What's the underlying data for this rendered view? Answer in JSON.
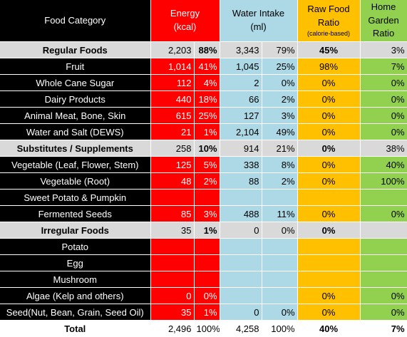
{
  "header": {
    "category": "Food Category",
    "energy_line1": "Energy",
    "energy_line2": "(kcal)",
    "water_line1": "Water Intake",
    "water_line2": "(ml)",
    "raw_line1": "Raw Food",
    "raw_line2": "Ratio",
    "raw_line3": "(calorie-based)",
    "home_line1": "Home",
    "home_line2": "Garden",
    "home_line3": "Ratio"
  },
  "rows": [
    {
      "type": "group",
      "name": "Regular Foods",
      "energy": "2,203",
      "energy_pct": "88%",
      "water": "3,343",
      "water_pct": "79%",
      "raw": "45%",
      "home": "3%"
    },
    {
      "type": "item",
      "name": "Fruit",
      "energy": "1,014",
      "energy_pct": "41%",
      "water": "1,045",
      "water_pct": "25%",
      "raw": "98%",
      "home": "7%"
    },
    {
      "type": "item",
      "name": "Whole Cane Sugar",
      "energy": "112",
      "energy_pct": "4%",
      "water": "2",
      "water_pct": "0%",
      "raw": "0%",
      "home": "0%"
    },
    {
      "type": "item",
      "name": "Dairy Products",
      "energy": "440",
      "energy_pct": "18%",
      "water": "66",
      "water_pct": "2%",
      "raw": "0%",
      "home": "0%"
    },
    {
      "type": "item",
      "name": "Animal Meat, Bone, Skin",
      "energy": "615",
      "energy_pct": "25%",
      "water": "127",
      "water_pct": "3%",
      "raw": "0%",
      "home": "0%"
    },
    {
      "type": "item",
      "name": "Water and Salt (DEWS)",
      "energy": "21",
      "energy_pct": "1%",
      "water": "2,104",
      "water_pct": "49%",
      "raw": "0%",
      "home": "0%"
    },
    {
      "type": "group",
      "name": "Substitutes / Supplements",
      "energy": "258",
      "energy_pct": "10%",
      "water": "914",
      "water_pct": "21%",
      "raw": "0%",
      "home": "38%"
    },
    {
      "type": "item",
      "name": "Vegetable (Leaf, Flower, Stem)",
      "energy": "125",
      "energy_pct": "5%",
      "water": "338",
      "water_pct": "8%",
      "raw": "0%",
      "home": "40%"
    },
    {
      "type": "item",
      "name": "Vegetable (Root)",
      "energy": "48",
      "energy_pct": "2%",
      "water": "88",
      "water_pct": "2%",
      "raw": "0%",
      "home": "100%"
    },
    {
      "type": "item",
      "name": "Sweet Potato & Pumpkin",
      "energy": "",
      "energy_pct": "",
      "water": "",
      "water_pct": "",
      "raw": "",
      "home": ""
    },
    {
      "type": "item",
      "name": "Fermented Seeds",
      "energy": "85",
      "energy_pct": "3%",
      "water": "488",
      "water_pct": "11%",
      "raw": "0%",
      "home": "0%"
    },
    {
      "type": "group",
      "name": "Irregular Foods",
      "energy": "35",
      "energy_pct": "1%",
      "water": "0",
      "water_pct": "0%",
      "raw": "0%",
      "home": ""
    },
    {
      "type": "item",
      "name": "Potato",
      "energy": "",
      "energy_pct": "",
      "water": "",
      "water_pct": "",
      "raw": "",
      "home": ""
    },
    {
      "type": "item",
      "name": "Egg",
      "energy": "",
      "energy_pct": "",
      "water": "",
      "water_pct": "",
      "raw": "",
      "home": ""
    },
    {
      "type": "item",
      "name": "Mushroom",
      "energy": "",
      "energy_pct": "",
      "water": "",
      "water_pct": "",
      "raw": "",
      "home": ""
    },
    {
      "type": "item",
      "name": "Algae (Kelp and others)",
      "energy": "0",
      "energy_pct": "0%",
      "water": "",
      "water_pct": "",
      "raw": "0%",
      "home": "0%"
    },
    {
      "type": "item",
      "name": "Seed(Nut, Bean, Grain, Seed Oil)",
      "energy": "35",
      "energy_pct": "1%",
      "water": "0",
      "water_pct": "0%",
      "raw": "0%",
      "home": "0%"
    },
    {
      "type": "total",
      "name": "Total",
      "energy": "2,496",
      "energy_pct": "100%",
      "water": "4,258",
      "water_pct": "100%",
      "raw": "40%",
      "home": "7%"
    }
  ]
}
